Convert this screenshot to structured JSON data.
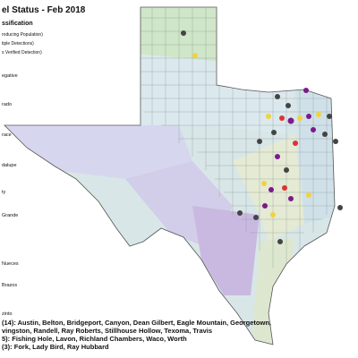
{
  "header": {
    "title": "el Status - Feb 2018",
    "subtitle": "ssification"
  },
  "legend": [
    "roducing Population)",
    "tiple Detections)",
    "s Verified Detection)"
  ],
  "basins": [
    "egative",
    "rado",
    "race",
    "dalupe",
    "ty",
    "Grande",
    "Nueces",
    "Brazos",
    "zinto"
  ],
  "notes": [
    "(14): Austin, Belton, Bridgeport, Canyon, Dean Gilbert, Eagle Mountain, Georgetown,",
    "vingston, Randell, Ray Roberts, Stillhouse Hollow, Texoma, Travis",
    "5): Fishing Hole, Lavon, Richland Chambers, Waco, Worth",
    "(3): Fork, Lady Bird, Ray Hubbard"
  ]
}
